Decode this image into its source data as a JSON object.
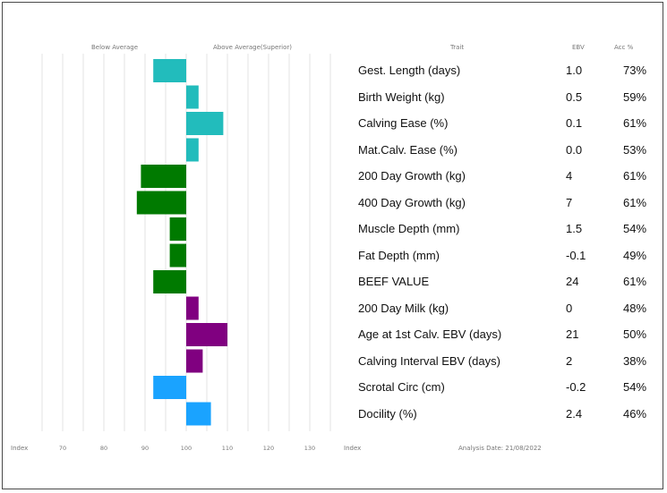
{
  "header": {
    "below_average": "Below Average",
    "above_average": "Above Average(Superior)",
    "trait": "Trait",
    "ebv": "EBV",
    "acc": "Acc %"
  },
  "footer": {
    "index_left": "Index",
    "index_right": "Index",
    "analysis_date": "Analysis Date: 21/08/2022"
  },
  "chart_data": {
    "type": "bar",
    "orientation": "horizontal",
    "baseline": 100,
    "xlim": [
      63,
      140
    ],
    "x_ticks": [
      70,
      80,
      90,
      100,
      110,
      120,
      130
    ],
    "grid": true,
    "colors": {
      "teal": "#22bcbc",
      "green": "#007a00",
      "purple": "#800080",
      "blue": "#1aa3ff"
    },
    "rows": [
      {
        "trait": "Gest. Length (days)",
        "ebv": "1.0",
        "acc": "73%",
        "index": 92,
        "color": "teal"
      },
      {
        "trait": "Birth Weight (kg)",
        "ebv": "0.5",
        "acc": "59%",
        "index": 103,
        "color": "teal"
      },
      {
        "trait": "Calving Ease (%)",
        "ebv": "0.1",
        "acc": "61%",
        "index": 109,
        "color": "teal"
      },
      {
        "trait": "Mat.Calv. Ease (%)",
        "ebv": "0.0",
        "acc": "53%",
        "index": 103,
        "color": "teal"
      },
      {
        "trait": "200 Day Growth (kg)",
        "ebv": "4",
        "acc": "61%",
        "index": 89,
        "color": "green"
      },
      {
        "trait": "400 Day Growth (kg)",
        "ebv": "7",
        "acc": "61%",
        "index": 88,
        "color": "green"
      },
      {
        "trait": "Muscle Depth (mm)",
        "ebv": "1.5",
        "acc": "54%",
        "index": 96,
        "color": "green"
      },
      {
        "trait": "Fat Depth (mm)",
        "ebv": "-0.1",
        "acc": "49%",
        "index": 96,
        "color": "green"
      },
      {
        "trait": "BEEF VALUE",
        "ebv": "24",
        "acc": "61%",
        "index": 92,
        "color": "green"
      },
      {
        "trait": "200 Day Milk (kg)",
        "ebv": "0",
        "acc": "48%",
        "index": 103,
        "color": "purple"
      },
      {
        "trait": "Age at 1st Calv. EBV (days)",
        "ebv": "21",
        "acc": "50%",
        "index": 110,
        "color": "purple"
      },
      {
        "trait": "Calving Interval EBV (days)",
        "ebv": "2",
        "acc": "38%",
        "index": 104,
        "color": "purple"
      },
      {
        "trait": "Scrotal Circ (cm)",
        "ebv": "-0.2",
        "acc": "54%",
        "index": 92,
        "color": "blue"
      },
      {
        "trait": "Docility (%)",
        "ebv": "2.4",
        "acc": "46%",
        "index": 106,
        "color": "blue"
      }
    ]
  }
}
